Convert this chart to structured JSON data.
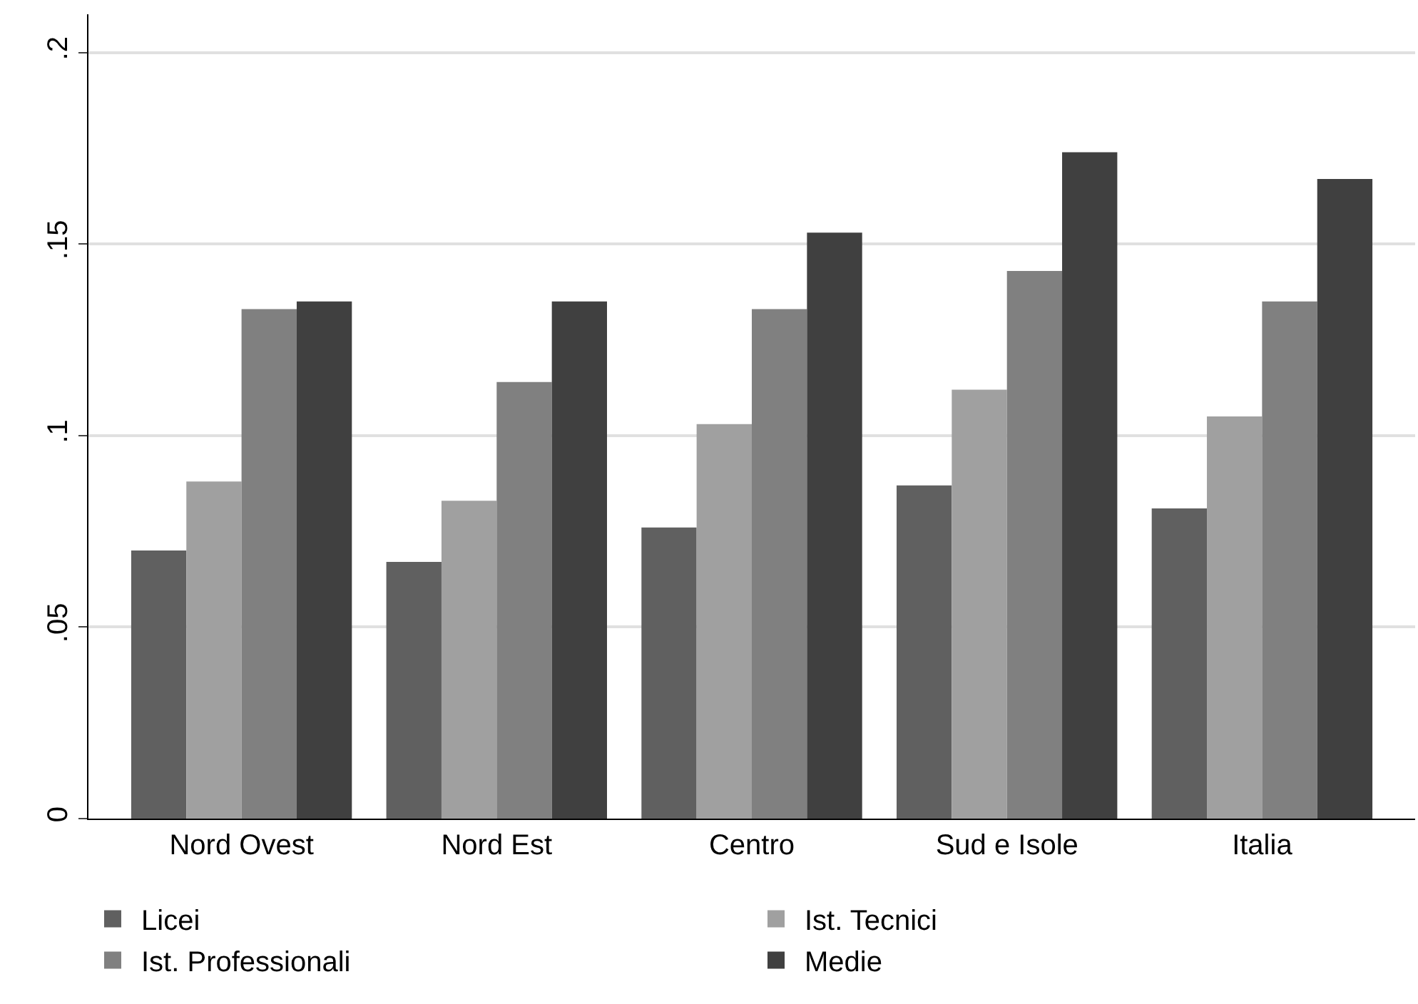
{
  "chart_data": {
    "type": "bar",
    "categories": [
      "Nord Ovest",
      "Nord Est",
      "Centro",
      "Sud e Isole",
      "Italia"
    ],
    "series": [
      {
        "name": "Licei",
        "color": "#606060",
        "values": [
          0.07,
          0.067,
          0.076,
          0.087,
          0.081
        ]
      },
      {
        "name": "Ist. Tecnici",
        "color": "#a0a0a0",
        "values": [
          0.088,
          0.083,
          0.103,
          0.112,
          0.105
        ]
      },
      {
        "name": "Ist. Professionali",
        "color": "#808080",
        "values": [
          0.133,
          0.114,
          0.133,
          0.143,
          0.135
        ]
      },
      {
        "name": "Medie",
        "color": "#404040",
        "values": [
          0.135,
          0.135,
          0.153,
          0.174,
          0.167
        ]
      }
    ],
    "ylim": [
      0,
      0.21
    ],
    "yticks": [
      0,
      {
        "value": 0.05,
        "label": ".05"
      },
      {
        "value": 0.1,
        "label": ".1"
      },
      {
        "value": 0.15,
        "label": ".15"
      },
      {
        "value": 0.2,
        "label": ".2"
      }
    ],
    "grid": "y",
    "legend": "bottom"
  }
}
